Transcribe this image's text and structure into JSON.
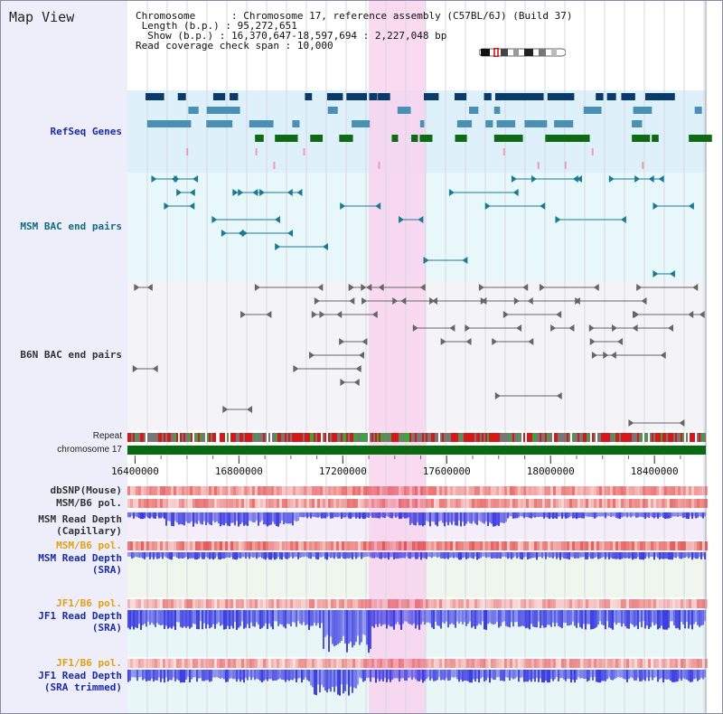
{
  "view": {
    "title": "Map View"
  },
  "info": {
    "chromosome_key": "Chromosome",
    "chromosome_value": "Chromosome 17, reference assembly (C57BL/6J) (Build 37)",
    "length_key": "Length (b.p.)",
    "length_value": "95,272,651",
    "show_key": "Show (b.p.)",
    "show_value": "16,370,647-18,597,694 : 2,227,048 bp",
    "coverage_key": "Read coverage check span",
    "coverage_value": "10,000"
  },
  "tracks": {
    "refseq": "RefSeq Genes",
    "msm_bac": "MSM BAC end pairs",
    "b6n_bac": "B6N BAC end pairs",
    "repeat": "Repeat",
    "chromosome": "chromosome 17",
    "dbsnp": "dbSNP(Mouse)",
    "msm_b6_pol_1": "MSM/B6 pol.",
    "msm_depth_cap_1": "MSM Read Depth",
    "msm_depth_cap_2": "(Capillary)",
    "msm_b6_pol_2": "MSM/B6 pol.",
    "msm_depth_sra_1": "MSM Read Depth",
    "msm_depth_sra_2": "(SRA)",
    "jf1_b6_pol_1": "JF1/B6 pol.",
    "jf1_depth_sra_1": "JF1 Read Depth",
    "jf1_depth_sra_2": "(SRA)",
    "jf1_b6_pol_2": "JF1/B6 pol.",
    "jf1_depth_trim_1": "JF1 Read Depth",
    "jf1_depth_trim_2": "(SRA trimmed)"
  },
  "axis": {
    "ticks": [
      "16400000",
      "16800000",
      "17200000",
      "17600000",
      "18000000",
      "18400000"
    ],
    "tick_values": [
      16400000,
      16800000,
      17200000,
      17600000,
      18000000,
      18400000
    ],
    "range_start": 16370647,
    "range_end": 18597694,
    "highlight_start": 17300000,
    "highlight_end": 17520000
  },
  "colors": {
    "refseq_bg": "#def0fa",
    "bac_bg": "#e8f8fa",
    "b6n_bg": "#f4f4f8",
    "highlight": "#f8d4ee",
    "gene_navy": "#0a3a6a",
    "gene_teal": "#4a8fb4",
    "gene_green": "#0e6b14",
    "chromosome_bar": "#0a6a10",
    "depth_blue": "#3030e0",
    "pol_red": "#e03030"
  },
  "icons": {
    "ideogram": "chromosome-ideogram-icon"
  }
}
